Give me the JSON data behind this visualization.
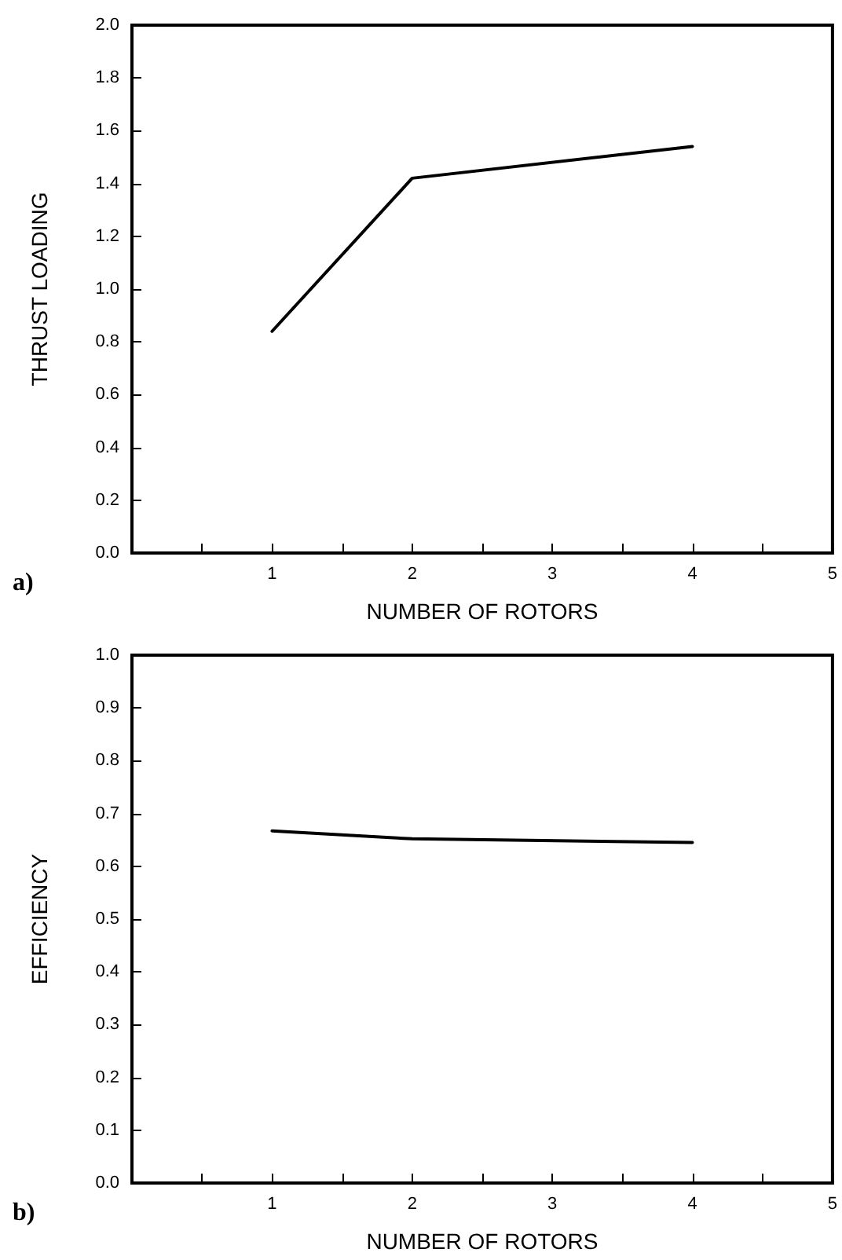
{
  "chart_data": [
    {
      "type": "line",
      "xlabel": "NUMBER OF ROTORS",
      "ylabel": "THRUST LOADING",
      "annotations": [
        "a)"
      ],
      "x": [
        1,
        2,
        4
      ],
      "series": [
        {
          "color": "#000000",
          "values": [
            0.84,
            1.42,
            1.54
          ]
        }
      ],
      "xlim": [
        0,
        5
      ],
      "xticks": [
        {
          "value": 0.5,
          "label": null
        },
        1,
        {
          "value": 1.5,
          "label": null
        },
        2,
        {
          "value": 2.5,
          "label": null
        },
        3,
        {
          "value": 3.5,
          "label": null
        },
        4,
        {
          "value": 4.5,
          "label": null
        },
        5
      ],
      "ylim": [
        0,
        2
      ],
      "yticks": [
        {
          "value": 0,
          "label": "0.0"
        },
        0.2,
        0.4,
        0.6,
        0.8,
        {
          "value": 1,
          "label": "1.0"
        },
        1.2,
        1.4,
        1.6,
        1.8,
        {
          "value": 2,
          "label": "2.0"
        }
      ],
      "grid": false,
      "marker": "none",
      "line_style": "solid"
    },
    {
      "type": "line",
      "xlabel": "NUMBER OF ROTORS",
      "ylabel": "EFFICIENCY",
      "annotations": [
        "b)"
      ],
      "x": [
        1,
        2,
        4
      ],
      "series": [
        {
          "color": "#000000",
          "values": [
            0.667,
            0.652,
            0.645
          ]
        }
      ],
      "xlim": [
        0,
        5
      ],
      "xticks": [
        {
          "value": 0.5,
          "label": null
        },
        1,
        {
          "value": 1.5,
          "label": null
        },
        2,
        {
          "value": 2.5,
          "label": null
        },
        3,
        {
          "value": 3.5,
          "label": null
        },
        4,
        {
          "value": 4.5,
          "label": null
        },
        5
      ],
      "ylim": [
        0,
        1
      ],
      "yticks": [
        {
          "value": 0,
          "label": "0.0"
        },
        0.1,
        0.2,
        0.3,
        0.4,
        0.5,
        0.6,
        0.7,
        0.8,
        0.9,
        {
          "value": 1,
          "label": "1.0"
        }
      ],
      "grid": false,
      "marker": "none",
      "line_style": "solid"
    }
  ]
}
